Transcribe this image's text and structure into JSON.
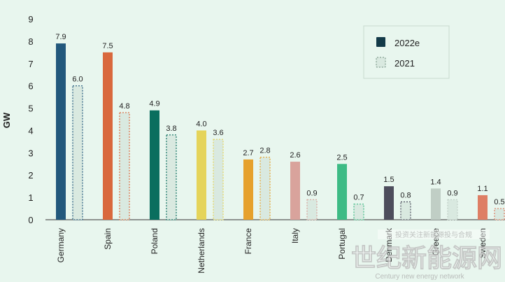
{
  "chart_data": {
    "type": "bar",
    "ylabel": "GW",
    "ylim": [
      0,
      9
    ],
    "yticks": [
      0,
      1,
      2,
      3,
      4,
      5,
      6,
      7,
      8,
      9
    ],
    "grid": false,
    "legend_position": "top-right",
    "categories": [
      "Germany",
      "Spain",
      "Poland",
      "Netherlands",
      "France",
      "Italy",
      "Portugal",
      "Denmark",
      "Greece",
      "Sweden"
    ],
    "colors_2022e": [
      "#22587c",
      "#d9683d",
      "#0a6e5e",
      "#e5d45a",
      "#e6a12d",
      "#d9a39c",
      "#3dbb85",
      "#4d4d5c",
      "#c0cec5",
      "#de7e64"
    ],
    "outline_2021": [
      "#22587c",
      "#d9683d",
      "#0a6e5e",
      "#e5d45a",
      "#e6a12d",
      "#d9a39c",
      "#3dbb85",
      "#4d4d5c",
      "#c0cec5",
      "#de7e64"
    ],
    "fill_2021": "#d9e9e0",
    "series": [
      {
        "name": "2022e",
        "values": [
          7.9,
          7.5,
          4.9,
          4.0,
          2.7,
          2.6,
          2.5,
          1.5,
          1.4,
          1.1
        ],
        "labels": [
          "7.9",
          "7.5",
          "4.9",
          "4.0",
          "2.7",
          "2.6",
          "2.5",
          "1.5",
          "1.4",
          "1.1"
        ]
      },
      {
        "name": "2021",
        "values": [
          6.0,
          4.8,
          3.8,
          3.6,
          2.8,
          0.9,
          0.7,
          0.8,
          0.9,
          0.5
        ],
        "labels": [
          "6.0",
          "4.8",
          "3.8",
          "3.6",
          "2.8",
          "0.9",
          "0.7",
          "0.8",
          "0.9",
          "0.5"
        ]
      }
    ],
    "legend_colors": {
      "2022e": "#133a48",
      "2021": "#d9e9e0"
    }
  },
  "watermark": {
    "line1": "世纪新能源网",
    "line2": "Century new energy network",
    "tag": "投资关注新能源投与合规"
  }
}
